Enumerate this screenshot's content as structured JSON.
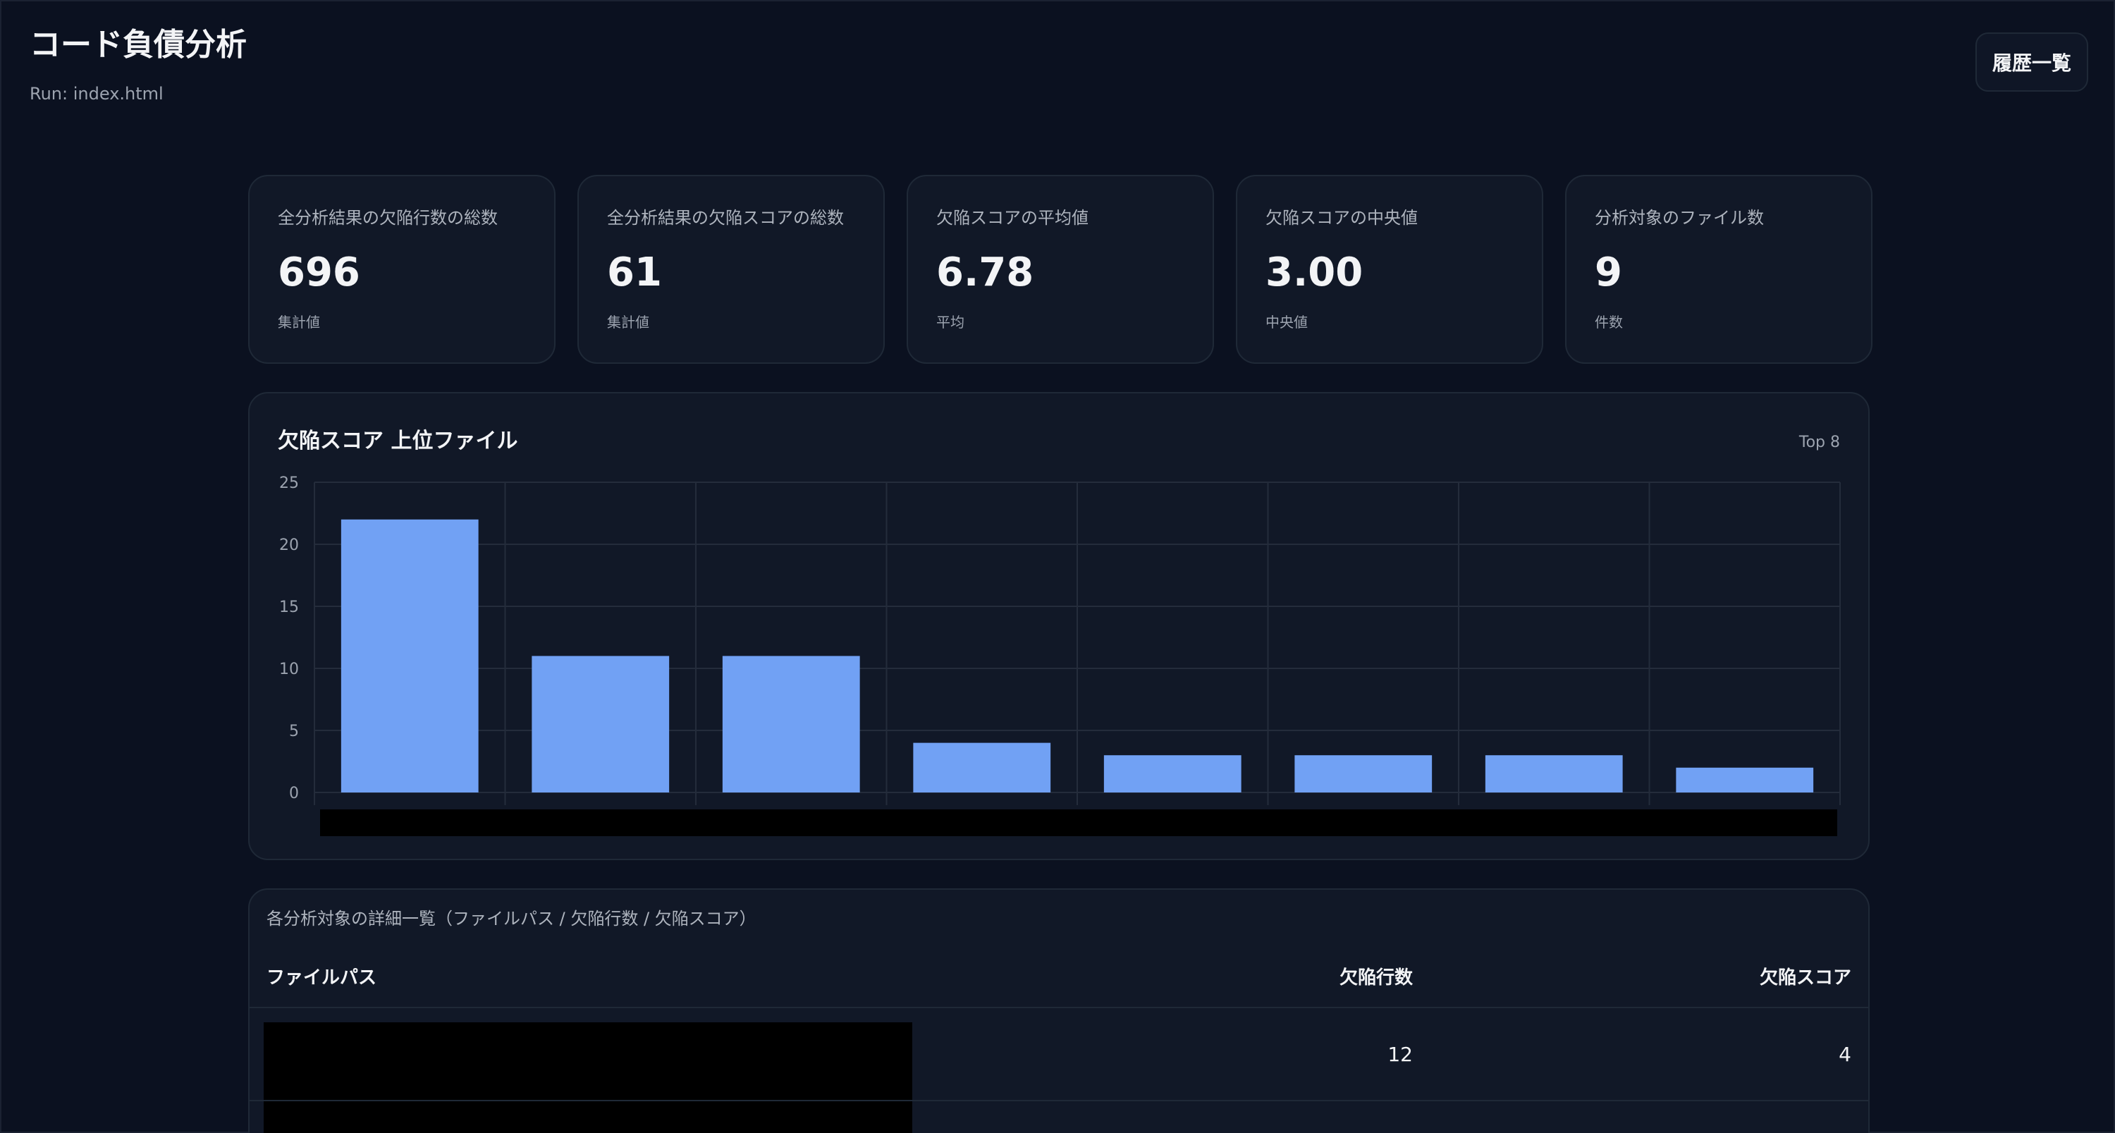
{
  "header": {
    "title": "コード負債分析",
    "run_label": "Run: index.html",
    "history_button": "履歴一覧"
  },
  "cards": [
    {
      "label": "全分析結果の欠陥行数の総数",
      "value": "696",
      "note": "集計値"
    },
    {
      "label": "全分析結果の欠陥スコアの総数",
      "value": "61",
      "note": "集計値"
    },
    {
      "label": "欠陥スコアの平均値",
      "value": "6.78",
      "note": "平均"
    },
    {
      "label": "欠陥スコアの中央値",
      "value": "3.00",
      "note": "中央値"
    },
    {
      "label": "分析対象のファイル数",
      "value": "9",
      "note": "件数"
    }
  ],
  "chart_panel": {
    "title": "欠陥スコア 上位ファイル",
    "badge": "Top 8"
  },
  "chart_data": {
    "type": "bar",
    "title": "欠陥スコア 上位ファイル",
    "categories": [
      "",
      "",
      "",
      "",
      "",
      "",
      "",
      ""
    ],
    "values": [
      22,
      11,
      11,
      4,
      3,
      3,
      3,
      2
    ],
    "yticks": [
      "0",
      "5",
      "10",
      "15",
      "20",
      "25"
    ],
    "ylim": [
      0,
      25
    ],
    "grid": true,
    "xlabels_redacted": true
  },
  "colors": {
    "background": "#0b1120",
    "panel": "#111827",
    "border": "#1f2937",
    "bar": "#71a1f4",
    "grid": "#242c3b"
  },
  "table": {
    "caption": "各分析対象の詳細一覧（ファイルパス / 欠陥行数 / 欠陥スコア）",
    "columns": [
      "ファイルパス",
      "欠陥行数",
      "欠陥スコア"
    ],
    "rows": [
      {
        "path": "",
        "lines": "12",
        "score": "4"
      }
    ]
  }
}
